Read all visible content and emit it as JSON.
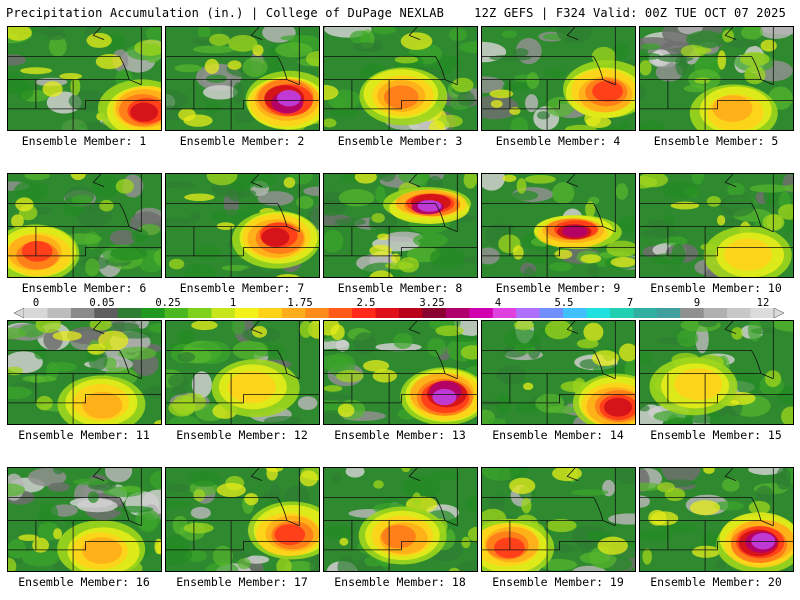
{
  "header": {
    "title": "Precipitation Accumulation (in.) | College of DuPage NEXLAB",
    "run_info": "12Z GEFS | F324 Valid: 00Z TUE OCT 07 2025"
  },
  "colorbar": {
    "labels": [
      "0",
      "0.05",
      "0.25",
      "1",
      "1.75",
      "2.5",
      "3.25",
      "4",
      "5.5",
      "7",
      "9",
      "12"
    ],
    "colors": [
      "#d8d8d8",
      "#bdbdbd",
      "#8a8a8a",
      "#5e5e5e",
      "#2e7d32",
      "#1f9a1f",
      "#4cb81f",
      "#7fd21c",
      "#c6e61b",
      "#f2f21a",
      "#ffd21a",
      "#ffad1a",
      "#ff8c1a",
      "#ff5a1a",
      "#ff2a1a",
      "#e0101a",
      "#b8001a",
      "#8a0030",
      "#b0006e",
      "#d000b0",
      "#e040e0",
      "#b070ff",
      "#7090ff",
      "#40c0ff",
      "#20e0e0",
      "#20d0b0",
      "#30b0a0",
      "#40a0a0",
      "#909090",
      "#b0b0b0",
      "#c8c8c8",
      "#dcdcdc"
    ]
  },
  "panels": [
    {
      "caption": "Ensemble Member: 1",
      "wet": "se"
    },
    {
      "caption": "Ensemble Member: 2",
      "wet": "east-heavy"
    },
    {
      "caption": "Ensemble Member: 3",
      "wet": "central"
    },
    {
      "caption": "Ensemble Member: 4",
      "wet": "east"
    },
    {
      "caption": "Ensemble Member: 5",
      "wet": "dry-north"
    },
    {
      "caption": "Ensemble Member: 6",
      "wet": "sw"
    },
    {
      "caption": "Ensemble Member: 7",
      "wet": "central-east"
    },
    {
      "caption": "Ensemble Member: 8",
      "wet": "north-band"
    },
    {
      "caption": "Ensemble Member: 9",
      "wet": "band"
    },
    {
      "caption": "Ensemble Member: 10",
      "wet": "light"
    },
    {
      "caption": "Ensemble Member: 11",
      "wet": "dry-north"
    },
    {
      "caption": "Ensemble Member: 12",
      "wet": "light"
    },
    {
      "caption": "Ensemble Member: 13",
      "wet": "east-heavy"
    },
    {
      "caption": "Ensemble Member: 14",
      "wet": "se"
    },
    {
      "caption": "Ensemble Member: 15",
      "wet": "light"
    },
    {
      "caption": "Ensemble Member: 16",
      "wet": "dry-north"
    },
    {
      "caption": "Ensemble Member: 17",
      "wet": "east"
    },
    {
      "caption": "Ensemble Member: 18",
      "wet": "central"
    },
    {
      "caption": "Ensemble Member: 19",
      "wet": "sw"
    },
    {
      "caption": "Ensemble Member: 20",
      "wet": "east-heavy"
    }
  ]
}
